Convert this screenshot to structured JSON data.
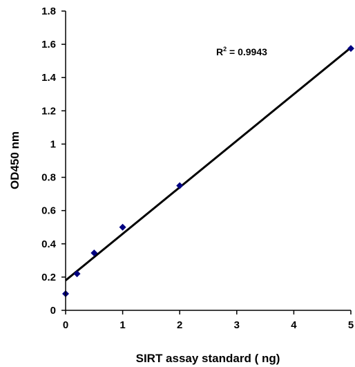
{
  "chart_data": {
    "type": "scatter",
    "xlabel": "SIRT assay standard ( ng)",
    "ylabel": "OD450 nm",
    "xlim": [
      0,
      5
    ],
    "ylim": [
      0,
      1.8
    ],
    "x_ticks": [
      "0",
      "1",
      "2",
      "3",
      "4",
      "5"
    ],
    "y_ticks": [
      "0",
      "0.2",
      "0.4",
      "0.6",
      "0.8",
      "1",
      "1.2",
      "1.4",
      "1.6",
      "1.8"
    ],
    "grid": false,
    "series": [
      {
        "points": [
          {
            "x": 0,
            "y": 0.1
          },
          {
            "x": 0.2,
            "y": 0.22
          },
          {
            "x": 0.5,
            "y": 0.345
          },
          {
            "x": 1,
            "y": 0.5
          },
          {
            "x": 2,
            "y": 0.75
          },
          {
            "x": 5,
            "y": 1.575
          }
        ],
        "marker": "diamond",
        "color": "#000080"
      }
    ],
    "trendline": {
      "type": "linear",
      "x_range": [
        0,
        5
      ],
      "y_start": 0.18,
      "y_end": 1.58,
      "color": "#000000"
    },
    "annotation": {
      "r_label": "R",
      "r_superscript": "2",
      "r_value": " = 0.9943"
    }
  }
}
